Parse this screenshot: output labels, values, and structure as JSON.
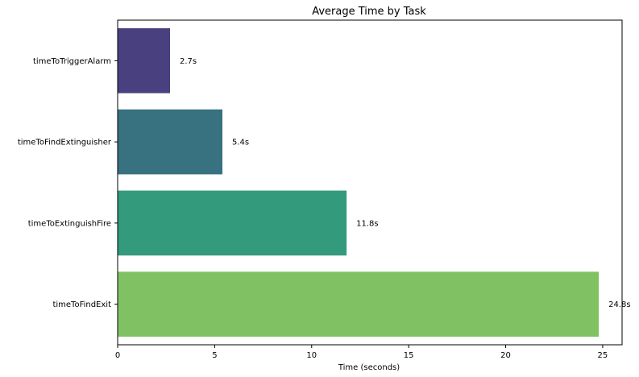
{
  "chart_data": {
    "type": "bar",
    "orientation": "horizontal",
    "title": "Average Time by Task",
    "xlabel": "Time (seconds)",
    "ylabel": "",
    "xlim": [
      0,
      26
    ],
    "xticks": [
      0,
      5,
      10,
      15,
      20,
      25
    ],
    "grid": false,
    "categories": [
      "timeToTriggerAlarm",
      "timeToFindExtinguisher",
      "timeToExtinguishFire",
      "timeToFindExit"
    ],
    "values": [
      2.7,
      5.4,
      11.8,
      24.8
    ],
    "value_labels": [
      "2.7s",
      "5.4s",
      "11.8s",
      "24.8s"
    ],
    "colors": [
      "#48407f",
      "#38717f",
      "#339a7c",
      "#80c263"
    ]
  }
}
